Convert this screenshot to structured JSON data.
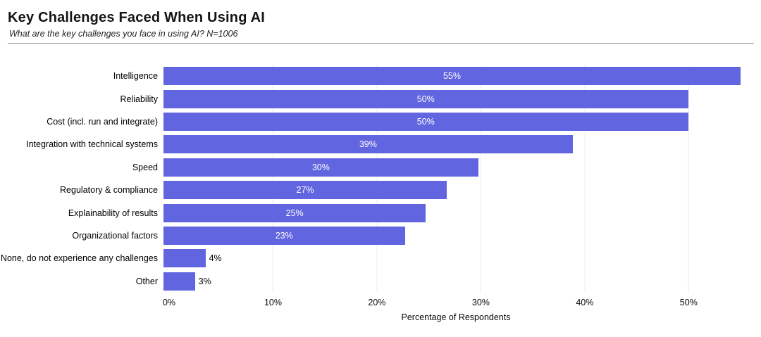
{
  "header": {
    "title": "Key Challenges Faced When Using AI",
    "subtitle": "What are the key challenges you face in using AI? N=1006"
  },
  "chart_data": {
    "type": "bar",
    "orientation": "horizontal",
    "title": "Key Challenges Faced When Using AI",
    "subtitle": "What are the key challenges you face in using AI? N=1006",
    "categories": [
      "Intelligence",
      "Reliability",
      "Cost (incl. run and integrate)",
      "Integration with technical systems",
      "Speed",
      "Regulatory & compliance",
      "Explainability of results",
      "Organizational factors",
      "None, do not experience any challenges",
      "Other"
    ],
    "values": [
      55,
      50,
      50,
      39,
      30,
      27,
      25,
      23,
      4,
      3
    ],
    "value_labels": [
      "55%",
      "50%",
      "50%",
      "39%",
      "30%",
      "27%",
      "25%",
      "23%",
      "4%",
      "3%"
    ],
    "xlabel": "Percentage of Respondents",
    "ylabel": "",
    "x_tick_labels": [
      "0%",
      "10%",
      "20%",
      "30%",
      "40%",
      "50%"
    ],
    "x_tick_values": [
      0,
      10,
      20,
      30,
      40,
      50
    ],
    "xlim": [
      0,
      55.2
    ],
    "grid": true,
    "legend": false,
    "colors": {
      "bar": "#6165E0",
      "gridline": "#ededed",
      "inside_value_label": "#ffffff",
      "outside_value_label": "#000000"
    },
    "inside_label_threshold": 10
  }
}
